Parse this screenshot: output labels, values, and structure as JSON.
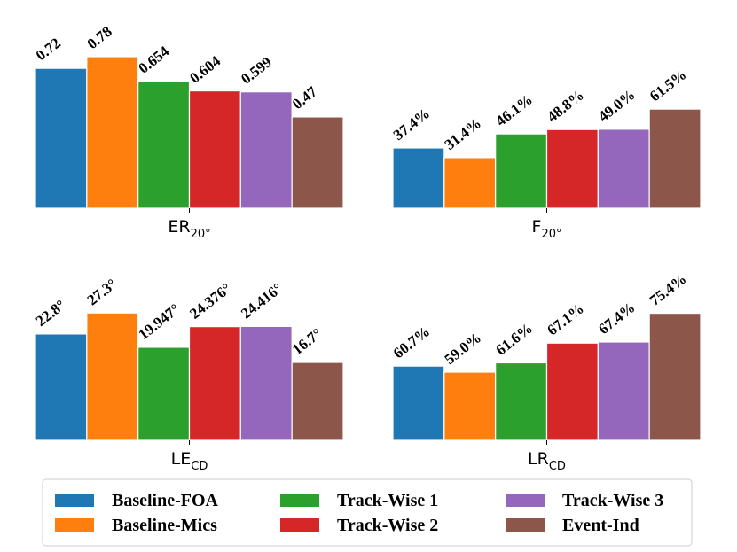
{
  "chart_data": [
    {
      "type": "bar",
      "metric": "ER",
      "metric_subscript": "20°",
      "categories": [
        "Baseline-FOA",
        "Baseline-Mics",
        "Track-Wise 1",
        "Track-Wise 2",
        "Track-Wise 3",
        "Event-Ind"
      ],
      "values": [
        0.72,
        0.78,
        0.654,
        0.604,
        0.599,
        0.47
      ],
      "labels": [
        "0.72",
        "0.78",
        "0.654",
        "0.604",
        "0.599",
        "0.47"
      ],
      "ylim": [
        0,
        0.78
      ]
    },
    {
      "type": "bar",
      "metric": "F",
      "metric_subscript": "20°",
      "categories": [
        "Baseline-FOA",
        "Baseline-Mics",
        "Track-Wise 1",
        "Track-Wise 2",
        "Track-Wise 3",
        "Event-Ind"
      ],
      "values": [
        37.4,
        31.4,
        46.1,
        48.8,
        49.0,
        61.5
      ],
      "labels": [
        "37.4%",
        "31.4%",
        "46.1%",
        "48.8%",
        "49.0%",
        "61.5%"
      ],
      "ylim": [
        0,
        94
      ]
    },
    {
      "type": "bar",
      "metric": "LE",
      "metric_subscript": "CD",
      "categories": [
        "Baseline-FOA",
        "Baseline-Mics",
        "Track-Wise 1",
        "Track-Wise 2",
        "Track-Wise 3",
        "Event-Ind"
      ],
      "values": [
        22.8,
        27.3,
        19.947,
        24.376,
        24.416,
        16.7
      ],
      "labels": [
        "22.8°",
        "27.3°",
        "19.947°",
        "24.376°",
        "24.416°",
        "16.7°"
      ],
      "ylim": [
        0,
        30
      ]
    },
    {
      "type": "bar",
      "metric": "LR",
      "metric_subscript": "CD",
      "categories": [
        "Baseline-FOA",
        "Baseline-Mics",
        "Track-Wise 1",
        "Track-Wise 2",
        "Track-Wise 3",
        "Event-Ind"
      ],
      "values": [
        60.7,
        59.0,
        61.6,
        67.1,
        67.4,
        75.4
      ],
      "labels": [
        "60.7%",
        "59.0%",
        "61.6%",
        "67.1%",
        "67.4%",
        "75.4%"
      ],
      "ylim": [
        40,
        79
      ]
    }
  ],
  "legend": {
    "placement": "bottom",
    "items": [
      {
        "label": "Baseline-FOA",
        "color": "#1f77b4"
      },
      {
        "label": "Baseline-Mics",
        "color": "#ff7f0e"
      },
      {
        "label": "Track-Wise 1",
        "color": "#2ca02c"
      },
      {
        "label": "Track-Wise 2",
        "color": "#d62728"
      },
      {
        "label": "Track-Wise 3",
        "color": "#9467bd"
      },
      {
        "label": "Event-Ind",
        "color": "#8c564b"
      }
    ]
  }
}
